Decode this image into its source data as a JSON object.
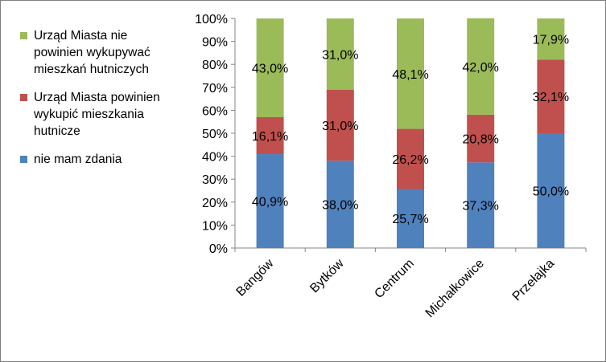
{
  "chart_data": {
    "type": "bar",
    "stacked": true,
    "normalized": true,
    "categories": [
      "Bangów",
      "Bytków",
      "Centrum",
      "Michałkowice",
      "Przełajka"
    ],
    "series": [
      {
        "name": "nie mam zdania",
        "color": "#4f81bd",
        "values": [
          40.9,
          38.0,
          25.7,
          37.3,
          50.0
        ],
        "labels": [
          "40,9%",
          "38,0%",
          "25,7%",
          "37,3%",
          "50,0%"
        ]
      },
      {
        "name": "Urząd Miasta powinien wykupić mieszkania hutnicze",
        "color": "#c0504d",
        "values": [
          16.1,
          31.0,
          26.2,
          20.8,
          32.1
        ],
        "labels": [
          "16,1%",
          "31,0%",
          "26,2%",
          "20,8%",
          "32,1%"
        ]
      },
      {
        "name": "Urząd Miasta nie powinien wykupywać mieszkań hutniczych",
        "color": "#9bbb59",
        "values": [
          43.0,
          31.0,
          48.1,
          42.0,
          17.9
        ],
        "labels": [
          "43,0%",
          "31,0%",
          "48,1%",
          "42,0%",
          "17,9%"
        ]
      }
    ],
    "ylim": [
      0,
      100
    ],
    "yticks": [
      "0%",
      "10%",
      "20%",
      "30%",
      "40%",
      "50%",
      "60%",
      "70%",
      "80%",
      "90%",
      "100%"
    ],
    "legend_position": "left",
    "grid": false
  },
  "legend": [
    {
      "lines": [
        "Urząd Miasta nie",
        "powinien wykupywać",
        "mieszkań hutniczych"
      ],
      "color": "#9bbb59"
    },
    {
      "lines": [
        "Urząd Miasta powinien",
        "wykupić mieszkania",
        "hutnicze"
      ],
      "color": "#c0504d"
    },
    {
      "lines": [
        "nie mam zdania"
      ],
      "color": "#4f81bd"
    }
  ]
}
